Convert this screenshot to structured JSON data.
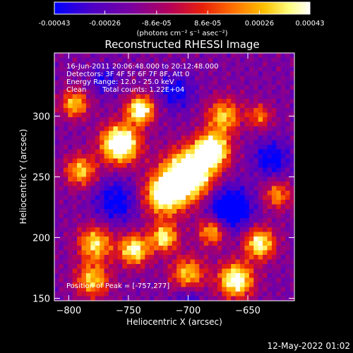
{
  "colorbar": {
    "tick_labels": [
      "-0.00043",
      "-0.00026",
      "-8.6e-05",
      "8.6e-05",
      "0.00026",
      "0.00043"
    ],
    "tick_values": [
      -0.00043,
      -0.00026,
      -8.6e-05,
      8.6e-05,
      0.00026,
      0.00043
    ],
    "range": [
      -0.00043,
      0.00043
    ],
    "units_label": "(photons cm⁻² s⁻¹ asec⁻²)",
    "colors": [
      "#0000ff",
      "#4a00c8",
      "#7a00a0",
      "#b4005a",
      "#e8200a",
      "#ff7000",
      "#ffc000",
      "#ffff80",
      "#ffffff"
    ]
  },
  "chart_data": {
    "type": "heatmap",
    "title": "Reconstructed RHESSI Image",
    "xlabel": "Heliocentric X (arcsec)",
    "ylabel": "Heliocentric Y (arcsec)",
    "xlim": [
      -812,
      -611
    ],
    "ylim": [
      148,
      352
    ],
    "x_ticks": [
      -800,
      -750,
      -700,
      -650
    ],
    "x_tick_labels": [
      "−800",
      "−750",
      "−700",
      "−650"
    ],
    "y_ticks": [
      150,
      200,
      250,
      300
    ],
    "y_tick_labels": [
      "150",
      "200",
      "250",
      "300"
    ],
    "grid": false,
    "peak": [
      -757,
      277
    ],
    "annotations": [
      "16-Jun-2011 20:06:48.000 to 20:12:48.000",
      "Detectors: 3F 4F 5F 6F 7F 8F, Att 0",
      "Energy Range: 12.0 - 25.0 keV",
      "Clean",
      "Total counts: 1.22E+04"
    ],
    "peak_label": "Position of Peak = [-757,277]"
  },
  "footer": {
    "timestamp": "12-May-2022 01:02"
  }
}
